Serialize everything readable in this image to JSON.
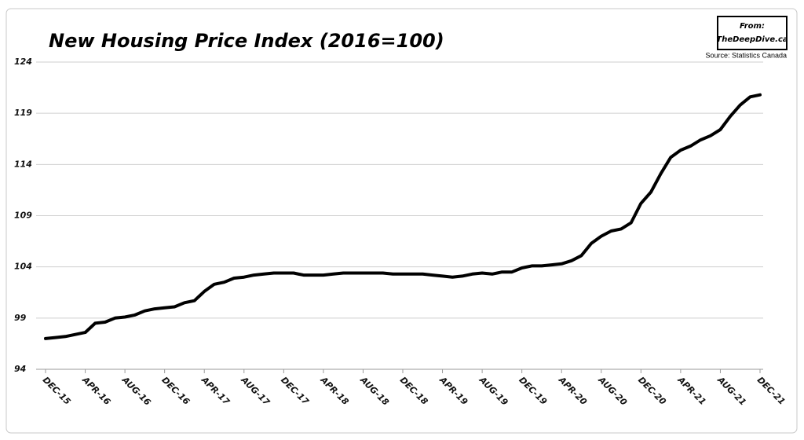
{
  "chart_data": {
    "type": "line",
    "title": "New Housing Price Index (2016=100)",
    "annotations": [
      "From:",
      "TheDeepDive.ca",
      "Source: Statistics Canada"
    ],
    "categories": [
      "DEC-15",
      null,
      null,
      null,
      "APR-16",
      null,
      null,
      null,
      "AUG-16",
      null,
      null,
      null,
      "DEC-16",
      null,
      null,
      null,
      "APR-17",
      null,
      null,
      null,
      "AUG-17",
      null,
      null,
      null,
      "DEC-17",
      null,
      null,
      null,
      "APR-18",
      null,
      null,
      null,
      "AUG-18",
      null,
      null,
      null,
      "DEC-18",
      null,
      null,
      null,
      "APR-19",
      null,
      null,
      null,
      "AUG-19",
      null,
      null,
      null,
      "DEC-19",
      null,
      null,
      null,
      "APR-20",
      null,
      null,
      null,
      "AUG-20",
      null,
      null,
      null,
      "DEC-20",
      null,
      null,
      null,
      "APR-21",
      null,
      null,
      null,
      "AUG-21",
      null,
      null,
      null,
      "DEC-21"
    ],
    "values": [
      97.0,
      97.1,
      97.2,
      97.4,
      97.6,
      98.5,
      98.6,
      99.0,
      99.1,
      99.3,
      99.7,
      99.9,
      100.0,
      100.1,
      100.5,
      100.7,
      101.6,
      102.3,
      102.5,
      102.9,
      103.0,
      103.2,
      103.3,
      103.4,
      103.4,
      103.4,
      103.2,
      103.2,
      103.2,
      103.3,
      103.4,
      103.4,
      103.4,
      103.4,
      103.4,
      103.3,
      103.3,
      103.3,
      103.3,
      103.2,
      103.1,
      103.0,
      103.1,
      103.3,
      103.4,
      103.3,
      103.5,
      103.5,
      103.9,
      104.1,
      104.1,
      104.2,
      104.3,
      104.6,
      105.1,
      106.3,
      107.0,
      107.5,
      107.7,
      108.3,
      110.2,
      111.3,
      113.1,
      114.7,
      115.4,
      115.8,
      116.4,
      116.8,
      117.4,
      118.7,
      119.8,
      120.6,
      120.8
    ],
    "color": "#000000",
    "ylim": [
      94,
      124
    ],
    "yticks": [
      94,
      99,
      104,
      109,
      114,
      119,
      124
    ],
    "grid": true
  }
}
